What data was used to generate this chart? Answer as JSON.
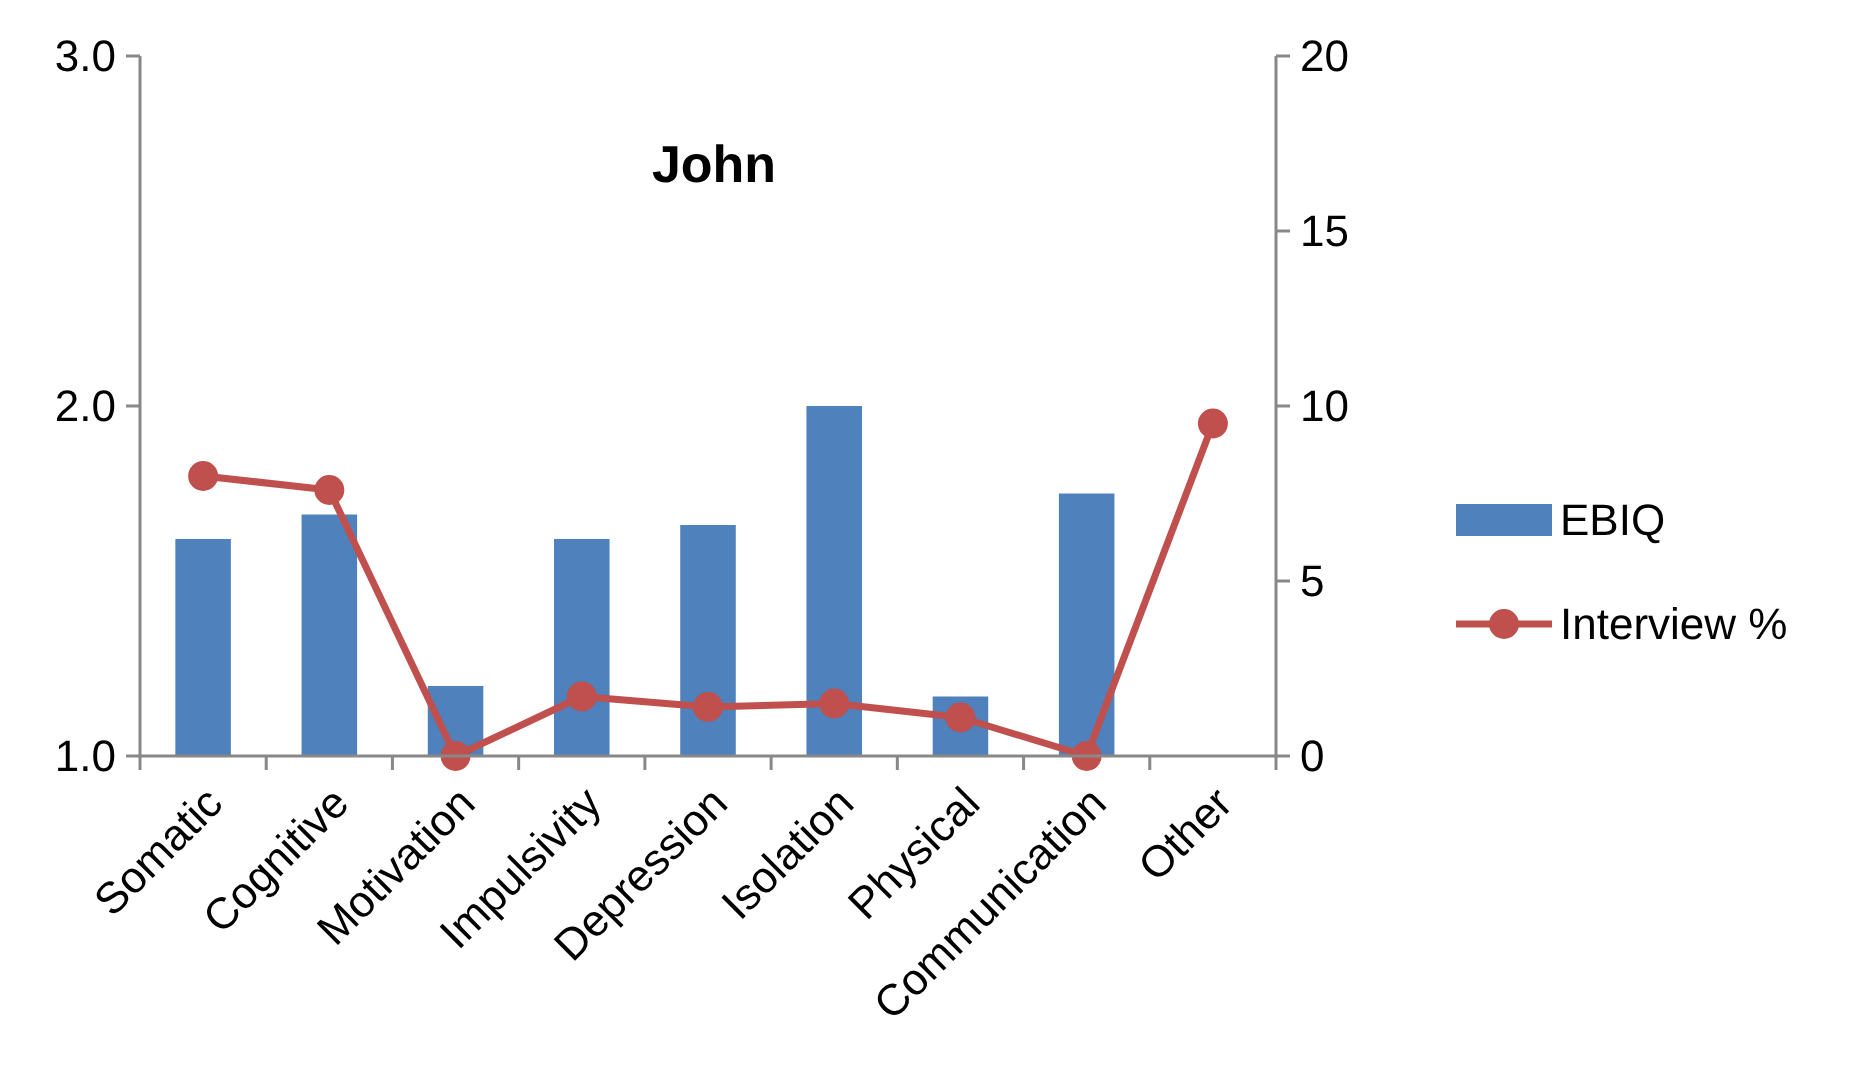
{
  "chart_data": {
    "type": "bar",
    "title": "John",
    "categories": [
      "Somatic",
      "Cognitive",
      "Motivation",
      "Impulsivity",
      "Depression",
      "Isolation",
      "Physical",
      "Communication",
      "Other"
    ],
    "series": [
      {
        "name": "EBIQ",
        "color": "#4f81bd",
        "values": [
          1.62,
          1.69,
          1.2,
          1.62,
          1.66,
          2.0,
          1.17,
          1.75,
          null
        ]
      },
      {
        "name": "Interview %",
        "type": "line",
        "axis": "y2",
        "color": "#c0504d",
        "marker": "circle",
        "values": [
          8.0,
          7.6,
          0,
          1.7,
          1.4,
          1.5,
          1.1,
          0,
          9.5
        ]
      }
    ],
    "ylim": [
      1.0,
      3.0
    ],
    "yticks": [
      {
        "value": 1,
        "label": "1.0"
      },
      {
        "value": 2,
        "label": "2.0"
      },
      {
        "value": 3,
        "label": "3.0"
      }
    ],
    "y2lim": [
      0,
      20
    ],
    "y2ticks": [
      0,
      5,
      10,
      15,
      20
    ],
    "grid": false,
    "legend": "right"
  }
}
